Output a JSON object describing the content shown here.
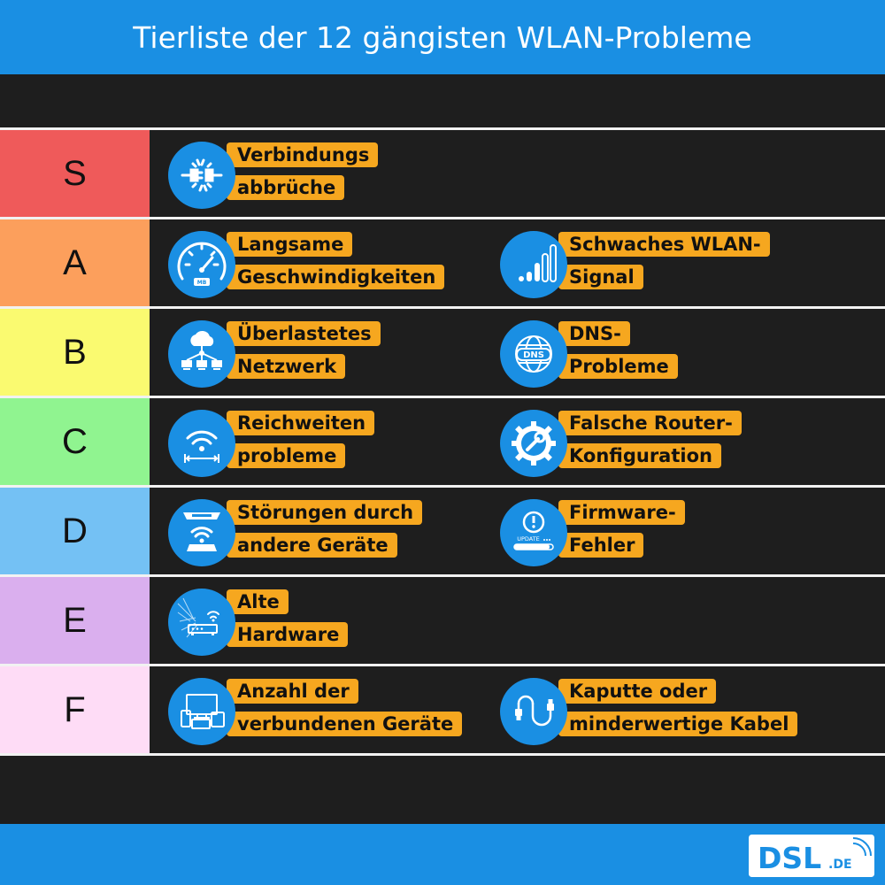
{
  "header": {
    "title": "Tierliste der 12 gängisten WLAN-Probleme"
  },
  "colors": {
    "brand_blue": "#1a8fe3",
    "label_bg": "#f6a71f",
    "panel_bg": "#1e1e1e",
    "tier_S": "#ef5a5a",
    "tier_A": "#fc9f5c",
    "tier_B": "#fafa70",
    "tier_C": "#90f490",
    "tier_D": "#74c1f4",
    "tier_E": "#daafee",
    "tier_F": "#fedcf6"
  },
  "tiers": [
    {
      "tier": "S",
      "items": [
        {
          "line1": "Verbindungs",
          "line2": "abbrüche",
          "icon": "plug-disconnect-icon"
        }
      ]
    },
    {
      "tier": "A",
      "items": [
        {
          "line1": "Langsame",
          "line2": "Geschwindigkeiten",
          "icon": "speedometer-icon"
        },
        {
          "line1": "Schwaches WLAN-",
          "line2": "Signal",
          "icon": "signal-bars-icon"
        }
      ]
    },
    {
      "tier": "B",
      "items": [
        {
          "line1": "Überlastetes",
          "line2": "Netzwerk",
          "icon": "cloud-network-icon"
        },
        {
          "line1": "DNS-",
          "line2": "Probleme",
          "icon": "dns-globe-icon"
        }
      ]
    },
    {
      "tier": "C",
      "items": [
        {
          "line1": "Reichweiten",
          "line2": "probleme",
          "icon": "wifi-range-icon"
        },
        {
          "line1": "Falsche Router-",
          "line2": "Konfiguration",
          "icon": "gear-wrench-icon"
        }
      ]
    },
    {
      "tier": "D",
      "items": [
        {
          "line1": "Störungen durch",
          "line2": "andere Geräte",
          "icon": "interference-icon"
        },
        {
          "line1": "Firmware-",
          "line2": "Fehler",
          "icon": "update-warning-icon",
          "icon_text": "UPDATE"
        }
      ]
    },
    {
      "tier": "E",
      "items": [
        {
          "line1": "Alte",
          "line2": "Hardware",
          "icon": "old-router-icon"
        }
      ]
    },
    {
      "tier": "F",
      "items": [
        {
          "line1": "Anzahl der",
          "line2": "verbundenen Geräte",
          "icon": "devices-icon"
        },
        {
          "line1": "Kaputte oder",
          "line2": "minderwertige Kabel",
          "icon": "cable-icon"
        }
      ]
    }
  ],
  "footer": {
    "logo_main": "DSL",
    "logo_suffix": ".DE"
  }
}
